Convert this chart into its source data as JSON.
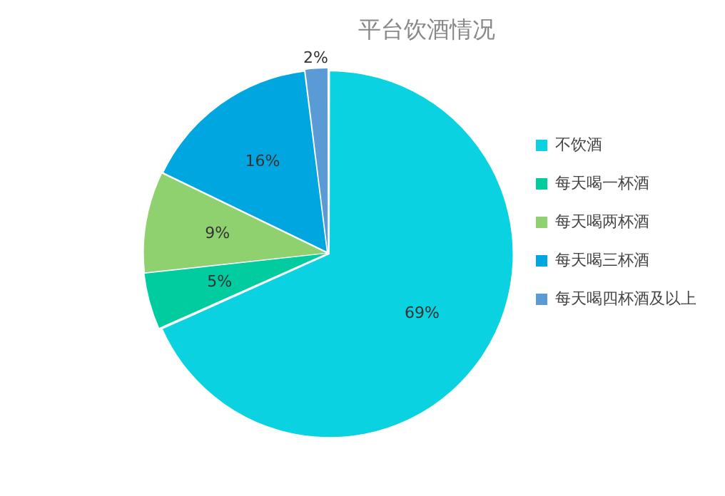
{
  "chart_data": {
    "type": "pie",
    "title": "平台饮酒情况",
    "categories": [
      "不饮酒",
      "每天喝一杯酒",
      "每天喝两杯酒",
      "每天喝三杯酒",
      "每天喝四杯酒及以上"
    ],
    "values": [
      69,
      5,
      9,
      16,
      2
    ],
    "value_labels": [
      "69%",
      "5%",
      "9%",
      "16%",
      "2%"
    ],
    "colors": [
      "#0ad2e0",
      "#00cca0",
      "#8fd16f",
      "#00a6e0",
      "#5b9bd5"
    ],
    "legend": "right"
  }
}
